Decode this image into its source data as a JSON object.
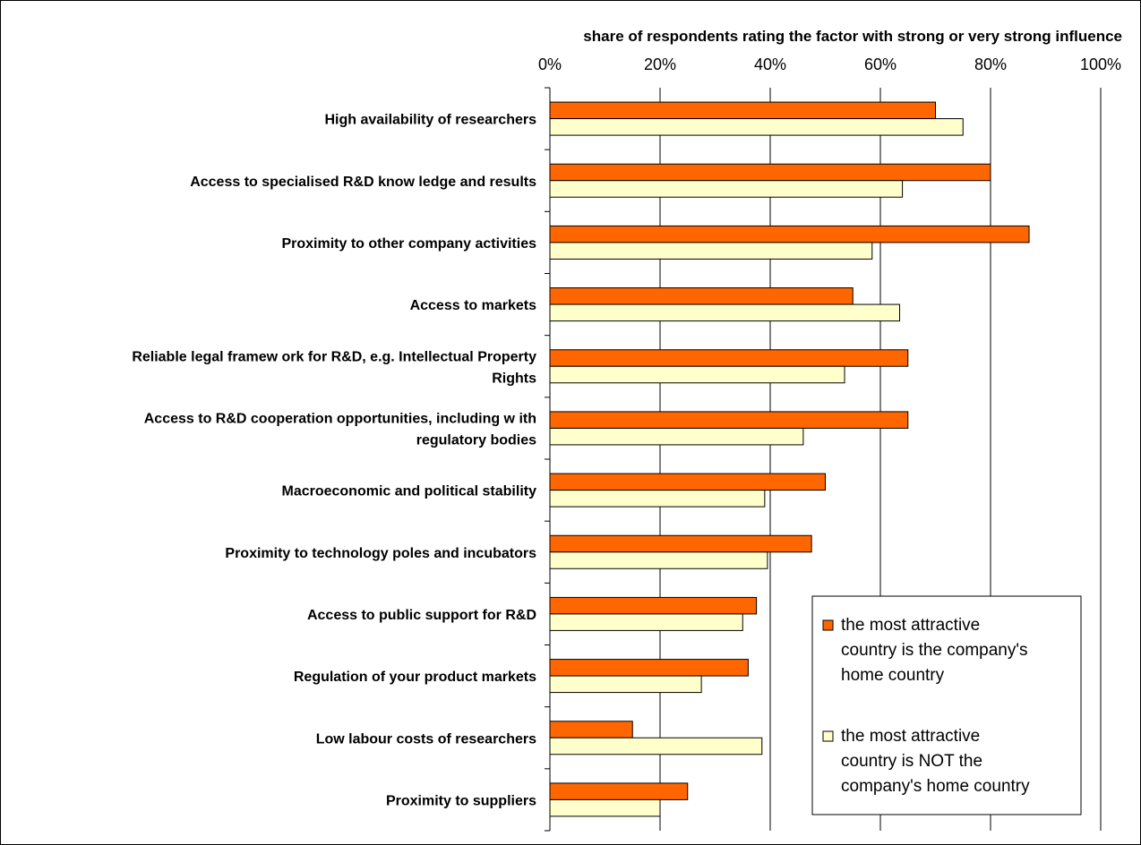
{
  "chart_data": {
    "type": "bar",
    "orientation": "horizontal",
    "xlabel": "share of respondents rating the factor with strong or very strong influence",
    "xlim": [
      0,
      100
    ],
    "x_ticks": [
      "0%",
      "20%",
      "40%",
      "60%",
      "80%",
      "100%"
    ],
    "x_tick_values": [
      0,
      20,
      40,
      60,
      80,
      100
    ],
    "grid": true,
    "legend_position": "bottom-right",
    "categories": [
      [
        "High availability of researchers"
      ],
      [
        "Access to specialised R&D know ledge and results"
      ],
      [
        "Proximity to other company activities"
      ],
      [
        "Access to markets"
      ],
      [
        "Reliable legal framew ork for R&D, e.g. Intellectual Property",
        "Rights"
      ],
      [
        "Access to R&D cooperation opportunities, including w ith",
        "regulatory bodies"
      ],
      [
        "Macroeconomic and political stability"
      ],
      [
        "Proximity to technology poles and incubators"
      ],
      [
        "Access to public support for R&D"
      ],
      [
        "Regulation of your product markets"
      ],
      [
        "Low labour costs of researchers"
      ],
      [
        "Proximity to suppliers"
      ]
    ],
    "series": [
      {
        "name": [
          "the most attractive",
          "country is the company's",
          "home country"
        ],
        "color": "#ff6600",
        "values": [
          70,
          80,
          87,
          55,
          65,
          65,
          50,
          47.5,
          37.5,
          36,
          15,
          25
        ]
      },
      {
        "name": [
          "the most attractive",
          "country is NOT the",
          "company's home country"
        ],
        "color": "#ffffcc",
        "values": [
          75,
          64,
          58.5,
          63.5,
          53.5,
          46,
          39,
          39.5,
          35,
          27.5,
          38.5,
          20
        ]
      }
    ]
  }
}
